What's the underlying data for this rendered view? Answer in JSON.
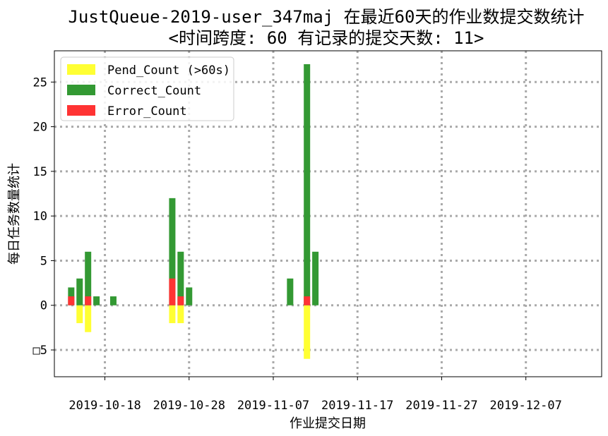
{
  "chart_data": {
    "type": "bar",
    "title_lines": [
      "JustQueue-2019-user_347maj 在最近60天的作业数提交数统计",
      "<时间跨度: 60  有记录的提交天数: 11>"
    ],
    "xlabel": "作业提交日期",
    "ylabel": "每日任务数量统计",
    "x_ticks": [
      "2019-10-18",
      "2019-10-28",
      "2019-11-07",
      "2019-11-17",
      "2019-11-27",
      "2019-12-07"
    ],
    "y_ticks": [
      -5,
      0,
      5,
      10,
      15,
      20,
      25
    ],
    "y_tick_labels": [
      "□5",
      "0",
      "5",
      "10",
      "15",
      "20",
      "25"
    ],
    "xlim": [
      "2019-10-12",
      "2019-12-16"
    ],
    "ylim": [
      -8,
      28.5
    ],
    "grid": true,
    "legend_position": "top-left",
    "dates": [
      "2019-10-14",
      "2019-10-15",
      "2019-10-16",
      "2019-10-17",
      "2019-10-19",
      "2019-10-26",
      "2019-10-27",
      "2019-10-28",
      "2019-11-09",
      "2019-11-11",
      "2019-11-12"
    ],
    "series": [
      {
        "name": "Pend_Count (>60s)",
        "color": "#ffff33",
        "values": [
          0,
          -2,
          -3,
          0,
          0,
          -2,
          -2,
          0,
          0,
          -6,
          0
        ]
      },
      {
        "name": "Correct_Count",
        "color": "#339933",
        "values": [
          2,
          3,
          6,
          1,
          1,
          12,
          6,
          2,
          3,
          27,
          6
        ]
      },
      {
        "name": "Error_Count",
        "color": "#ff3333",
        "values": [
          1,
          0,
          1,
          0,
          0,
          3,
          1,
          0,
          0,
          1,
          0
        ]
      }
    ]
  }
}
